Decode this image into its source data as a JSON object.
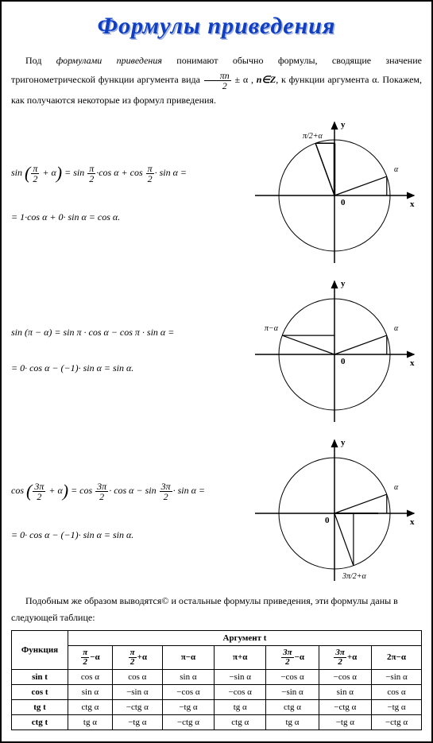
{
  "title": "Формулы приведения",
  "intro_parts": {
    "a": "Под ",
    "b": "формулами приведения",
    "c": " понимают обычно формулы, сводящие значение тригонометрической функции аргумента вида ",
    "frac_n": "πn",
    "frac_d": "2",
    "pm": " ± α  , ",
    "ninZ": "n∈Z",
    "d": ", к функции аргумента α. Покажем, как получаются некоторые из формул приведения."
  },
  "formula1": {
    "line1a": "sin",
    "p1": "(",
    "fn1": "π",
    "fd1": "2",
    "plus": " + α",
    "p2": ")",
    "eq": " = sin ",
    "fn2": "π",
    "fd2": "2",
    "mid1": "·cos α + cos ",
    "fn3": "π",
    "fd3": "2",
    "mid2": "· sin α =",
    "line2": "= 1·cos α + 0· sin α = cos α."
  },
  "formula2": {
    "line1": "sin (π − α) = sin π · cos α − cos π · sin α =",
    "line2": "= 0· cos α − (−1)· sin α = sin α."
  },
  "formula3": {
    "line1a": "cos",
    "p1": "(",
    "fn1": "3π",
    "fd1": "2",
    "plus": " + α",
    "p2": ")",
    "eq": " = cos ",
    "fn2": "3π",
    "fd2": "2",
    "mid1": "· cos α − sin ",
    "fn3": "3π",
    "fd3": "2",
    "mid2": "· sin α =",
    "line2": "= 0· cos α − (−1)· sin α = sin α."
  },
  "table_intro": "Подобным же образом выводятся© и остальные формулы приведения, эти формулы даны в следующей таблице:",
  "diagrams": {
    "labels": {
      "y": "y",
      "x": "x",
      "o": "0",
      "alpha": "α"
    },
    "d1": {
      "top": "π/2+α"
    },
    "d2": {
      "left": "π−α"
    },
    "d3": {
      "bottom": "3π/2+α"
    },
    "circle_color": "#000",
    "line_width": 1,
    "axis_width": 1.5,
    "radius_line_width": 1.2
  },
  "table": {
    "header1": "Аргумент t",
    "func": "Функция",
    "cols": [
      {
        "fn": "π",
        "fd": "2",
        "suf": "−α"
      },
      {
        "fn": "π",
        "fd": "2",
        "suf": "+α"
      },
      {
        "plain": "π−α"
      },
      {
        "plain": "π+α"
      },
      {
        "fn": "3π",
        "fd": "2",
        "suf": "−α"
      },
      {
        "fn": "3π",
        "fd": "2",
        "suf": "+α"
      },
      {
        "plain": "2π−α"
      }
    ],
    "rows": [
      {
        "f": "sin t",
        "v": [
          "cos α",
          "cos α",
          "sin α",
          "−sin α",
          "−cos α",
          "−cos α",
          "−sin α"
        ]
      },
      {
        "f": "cos t",
        "v": [
          "sin α",
          "−sin α",
          "−cos α",
          "−cos α",
          "−sin α",
          "sin α",
          "cos α"
        ]
      },
      {
        "f": "tg t",
        "v": [
          "ctg α",
          "−ctg α",
          "−tg α",
          "tg α",
          "ctg α",
          "−ctg α",
          "−tg α"
        ]
      },
      {
        "f": "ctg t",
        "v": [
          "tg α",
          "−tg α",
          "−ctg α",
          "ctg α",
          "tg α",
          "−tg α",
          "−ctg α"
        ]
      }
    ]
  }
}
